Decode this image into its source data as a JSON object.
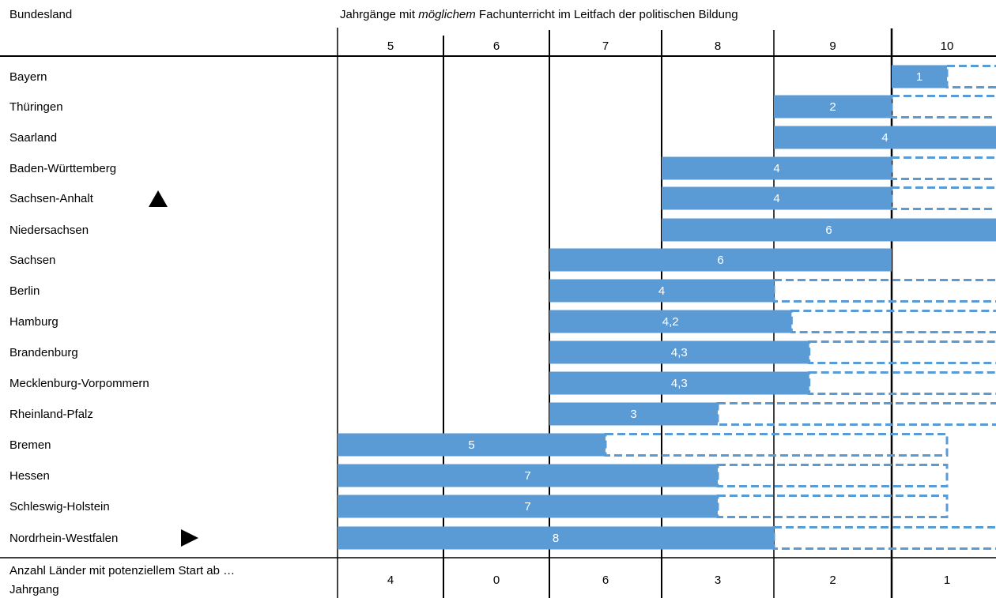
{
  "chart_data": {
    "type": "bar",
    "header": {
      "first_column": "Bundesland",
      "title_pre": "Jahrgänge mit ",
      "title_em": "möglichem",
      "title_post": " Fachunterricht im Leitfach der politischen Bildung"
    },
    "grades": [
      "5",
      "6",
      "7",
      "8",
      "9",
      "10"
    ],
    "colors": {
      "bar": "#5b9bd5",
      "bar_label": "#ffffff",
      "dashed": "#5b9bd5",
      "grid": "#000000"
    },
    "rows": [
      {
        "state": "Bayern",
        "start": 10,
        "solid_end": 10.5,
        "dashed_end": 11,
        "label": "1"
      },
      {
        "state": "Thüringen",
        "start": 9,
        "solid_end": 10,
        "dashed_end": 11,
        "label": "2"
      },
      {
        "state": "Saarland",
        "start": 9,
        "solid_end": 11,
        "dashed_end": null,
        "label": "4"
      },
      {
        "state": "Baden-Württemberg",
        "start": 8,
        "solid_end": 10,
        "dashed_end": 11,
        "label": "4"
      },
      {
        "state": "Sachsen-Anhalt",
        "start": 8,
        "solid_end": 10,
        "dashed_end": 11,
        "label": "4",
        "marker": "triangle-up"
      },
      {
        "state": "Niedersachsen",
        "start": 8,
        "solid_end": 11,
        "dashed_end": null,
        "label": "6"
      },
      {
        "state": "Sachsen",
        "start": 7,
        "solid_end": 10,
        "dashed_end": null,
        "label": "6"
      },
      {
        "state": "Berlin",
        "start": 7,
        "solid_end": 9,
        "dashed_end": 11,
        "label": "4"
      },
      {
        "state": "Hamburg",
        "start": 7,
        "solid_end": 9.15,
        "dashed_end": 11,
        "label": "4,2"
      },
      {
        "state": "Brandenburg",
        "start": 7,
        "solid_end": 9.3,
        "dashed_end": 11,
        "label": "4,3"
      },
      {
        "state": "Mecklenburg-Vorpommern",
        "start": 7,
        "solid_end": 9.3,
        "dashed_end": 11,
        "label": "4,3"
      },
      {
        "state": "Rheinland-Pfalz",
        "start": 7,
        "solid_end": 8.5,
        "dashed_end": 11,
        "label": "3"
      },
      {
        "state": "Bremen",
        "start": 5,
        "solid_end": 7.5,
        "dashed_end": 10.5,
        "label": "5"
      },
      {
        "state": "Hessen",
        "start": 5,
        "solid_end": 8.5,
        "dashed_end": 10.5,
        "label": "7"
      },
      {
        "state": "Schleswig-Holstein",
        "start": 5,
        "solid_end": 8.5,
        "dashed_end": 10.5,
        "label": "7"
      },
      {
        "state": "Nordrhein-Westfalen",
        "start": 5,
        "solid_end": 9,
        "dashed_end": 11,
        "label": "8",
        "marker": "triangle-right"
      }
    ],
    "footer": {
      "label_line1": "Anzahl Länder mit potenziellem Start ab …",
      "label_line2": "Jahrgang",
      "counts": [
        "4",
        "0",
        "6",
        "3",
        "2",
        "1"
      ]
    }
  }
}
